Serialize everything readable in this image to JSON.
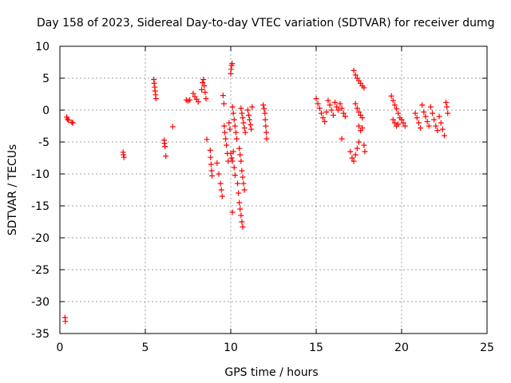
{
  "chart_data": {
    "type": "scatter",
    "title": "Day 158 of 2023, Sidereal Day-to-day VTEC variation (SDTVAR) for receiver dumg",
    "xlabel": "GPS time / hours",
    "ylabel": "SDTVAR / TECUs",
    "xlim": [
      0,
      25
    ],
    "ylim": [
      -35,
      10
    ],
    "xticks": [
      0,
      5,
      10,
      15,
      20,
      25
    ],
    "yticks": [
      10,
      5,
      0,
      -5,
      -10,
      -15,
      -20,
      -25,
      -30,
      -35
    ],
    "grid": true,
    "marker": "+",
    "color": "#ff0000",
    "series": [
      {
        "name": "SDTVAR",
        "points": [
          [
            0.3,
            -32.5
          ],
          [
            0.32,
            -33.1
          ],
          [
            0.4,
            -1.1
          ],
          [
            0.45,
            -1.4
          ],
          [
            0.5,
            -1.6
          ],
          [
            0.7,
            -1.9
          ],
          [
            0.75,
            -2.0
          ],
          [
            3.7,
            -6.6
          ],
          [
            3.72,
            -7.0
          ],
          [
            3.75,
            -7.4
          ],
          [
            5.5,
            4.8
          ],
          [
            5.52,
            4.2
          ],
          [
            5.55,
            3.6
          ],
          [
            5.57,
            3.0
          ],
          [
            5.6,
            2.4
          ],
          [
            5.62,
            1.8
          ],
          [
            6.1,
            -4.7
          ],
          [
            6.12,
            -5.2
          ],
          [
            6.15,
            -5.7
          ],
          [
            6.2,
            -7.2
          ],
          [
            6.6,
            -2.6
          ],
          [
            7.4,
            1.6
          ],
          [
            7.5,
            1.4
          ],
          [
            7.6,
            1.6
          ],
          [
            7.8,
            2.6
          ],
          [
            7.9,
            2.1
          ],
          [
            8.0,
            1.7
          ],
          [
            8.1,
            1.3
          ],
          [
            8.3,
            3.2
          ],
          [
            8.35,
            4.3
          ],
          [
            8.4,
            4.8
          ],
          [
            8.45,
            3.8
          ],
          [
            8.5,
            2.8
          ],
          [
            8.55,
            1.8
          ],
          [
            8.6,
            -4.6
          ],
          [
            8.8,
            -6.3
          ],
          [
            8.82,
            -7.4
          ],
          [
            8.85,
            -8.5
          ],
          [
            8.88,
            -9.5
          ],
          [
            8.9,
            -10.3
          ],
          [
            9.2,
            -8.3
          ],
          [
            9.3,
            -10.0
          ],
          [
            9.4,
            -11.5
          ],
          [
            9.45,
            -12.5
          ],
          [
            9.5,
            -13.5
          ],
          [
            9.55,
            2.3
          ],
          [
            9.6,
            1.0
          ],
          [
            9.62,
            -2.5
          ],
          [
            9.65,
            -3.5
          ],
          [
            9.7,
            -4.5
          ],
          [
            9.75,
            -5.5
          ],
          [
            9.8,
            -6.8
          ],
          [
            9.85,
            -8.0
          ],
          [
            9.9,
            -2.0
          ],
          [
            9.95,
            -3.0
          ],
          [
            10.0,
            5.7
          ],
          [
            10.02,
            6.4
          ],
          [
            10.05,
            7.0
          ],
          [
            10.08,
            7.3
          ],
          [
            10.1,
            -16.0
          ],
          [
            10.0,
            -6.8
          ],
          [
            10.05,
            -7.5
          ],
          [
            10.1,
            -8.0
          ],
          [
            10.15,
            -6.5
          ],
          [
            10.2,
            -9.0
          ],
          [
            10.25,
            -10.2
          ],
          [
            10.1,
            0.5
          ],
          [
            10.15,
            -0.5
          ],
          [
            10.2,
            -1.5
          ],
          [
            10.25,
            -2.5
          ],
          [
            10.3,
            -3.5
          ],
          [
            10.35,
            -4.5
          ],
          [
            10.4,
            -11.5
          ],
          [
            10.45,
            -13.0
          ],
          [
            10.5,
            -14.5
          ],
          [
            10.55,
            -15.5
          ],
          [
            10.6,
            -16.5
          ],
          [
            10.65,
            -17.5
          ],
          [
            10.7,
            -18.3
          ],
          [
            10.5,
            -6.0
          ],
          [
            10.55,
            -7.0
          ],
          [
            10.6,
            -8.0
          ],
          [
            10.65,
            -9.5
          ],
          [
            10.7,
            -10.5
          ],
          [
            10.75,
            -11.5
          ],
          [
            10.8,
            -12.5
          ],
          [
            10.6,
            0.3
          ],
          [
            10.65,
            -0.5
          ],
          [
            10.7,
            -1.2
          ],
          [
            10.75,
            -2.0
          ],
          [
            10.8,
            -2.8
          ],
          [
            10.85,
            -3.5
          ],
          [
            11.0,
            0.0
          ],
          [
            11.05,
            -0.8
          ],
          [
            11.1,
            -1.5
          ],
          [
            11.15,
            -2.3
          ],
          [
            11.2,
            -3.0
          ],
          [
            11.25,
            0.5
          ],
          [
            11.9,
            0.8
          ],
          [
            11.95,
            0.2
          ],
          [
            12.0,
            -0.5
          ],
          [
            12.02,
            -1.5
          ],
          [
            12.05,
            -2.5
          ],
          [
            12.08,
            -3.5
          ],
          [
            12.1,
            -4.5
          ],
          [
            15.0,
            1.8
          ],
          [
            15.1,
            1.0
          ],
          [
            15.2,
            0.3
          ],
          [
            15.3,
            -0.5
          ],
          [
            15.4,
            -1.2
          ],
          [
            15.5,
            -1.8
          ],
          [
            15.6,
            -0.3
          ],
          [
            15.7,
            1.5
          ],
          [
            15.8,
            0.8
          ],
          [
            15.9,
            0.0
          ],
          [
            16.0,
            -0.8
          ],
          [
            16.1,
            1.2
          ],
          [
            16.2,
            0.5
          ],
          [
            16.3,
            0.0
          ],
          [
            16.4,
            1.0
          ],
          [
            16.5,
            0.3
          ],
          [
            16.6,
            -0.5
          ],
          [
            16.7,
            -1.0
          ],
          [
            16.5,
            -4.5
          ],
          [
            17.0,
            -6.5
          ],
          [
            17.1,
            -7.5
          ],
          [
            17.2,
            -8.0
          ],
          [
            17.3,
            -7.0
          ],
          [
            17.4,
            -6.0
          ],
          [
            17.5,
            -5.0
          ],
          [
            17.2,
            6.2
          ],
          [
            17.3,
            5.5
          ],
          [
            17.4,
            5.0
          ],
          [
            17.5,
            4.6
          ],
          [
            17.6,
            4.2
          ],
          [
            17.7,
            3.8
          ],
          [
            17.8,
            3.5
          ],
          [
            17.3,
            1.0
          ],
          [
            17.4,
            0.3
          ],
          [
            17.5,
            -0.3
          ],
          [
            17.6,
            -0.8
          ],
          [
            17.7,
            -1.2
          ],
          [
            17.5,
            -2.5
          ],
          [
            17.6,
            -3.2
          ],
          [
            17.7,
            -2.8
          ],
          [
            17.8,
            -5.5
          ],
          [
            17.85,
            -6.5
          ],
          [
            19.4,
            2.2
          ],
          [
            19.5,
            1.5
          ],
          [
            19.6,
            0.8
          ],
          [
            19.7,
            0.2
          ],
          [
            19.8,
            -0.5
          ],
          [
            19.9,
            -1.2
          ],
          [
            19.5,
            -1.5
          ],
          [
            19.6,
            -2.0
          ],
          [
            19.7,
            -2.5
          ],
          [
            19.8,
            -2.2
          ],
          [
            20.0,
            -1.5
          ],
          [
            20.1,
            -2.0
          ],
          [
            20.2,
            -2.5
          ],
          [
            20.8,
            -0.5
          ],
          [
            20.9,
            -1.2
          ],
          [
            21.0,
            -2.0
          ],
          [
            21.1,
            -2.8
          ],
          [
            21.2,
            0.8
          ],
          [
            21.3,
            -0.3
          ],
          [
            21.4,
            -1.0
          ],
          [
            21.5,
            -1.8
          ],
          [
            21.6,
            -2.5
          ],
          [
            21.7,
            0.5
          ],
          [
            21.8,
            -0.5
          ],
          [
            21.9,
            -1.5
          ],
          [
            22.0,
            -2.5
          ],
          [
            22.1,
            -3.2
          ],
          [
            22.2,
            -1.0
          ],
          [
            22.3,
            -2.0
          ],
          [
            22.4,
            -3.0
          ],
          [
            22.5,
            -4.0
          ],
          [
            22.6,
            1.2
          ],
          [
            22.65,
            0.5
          ],
          [
            22.7,
            -0.5
          ]
        ]
      }
    ]
  }
}
